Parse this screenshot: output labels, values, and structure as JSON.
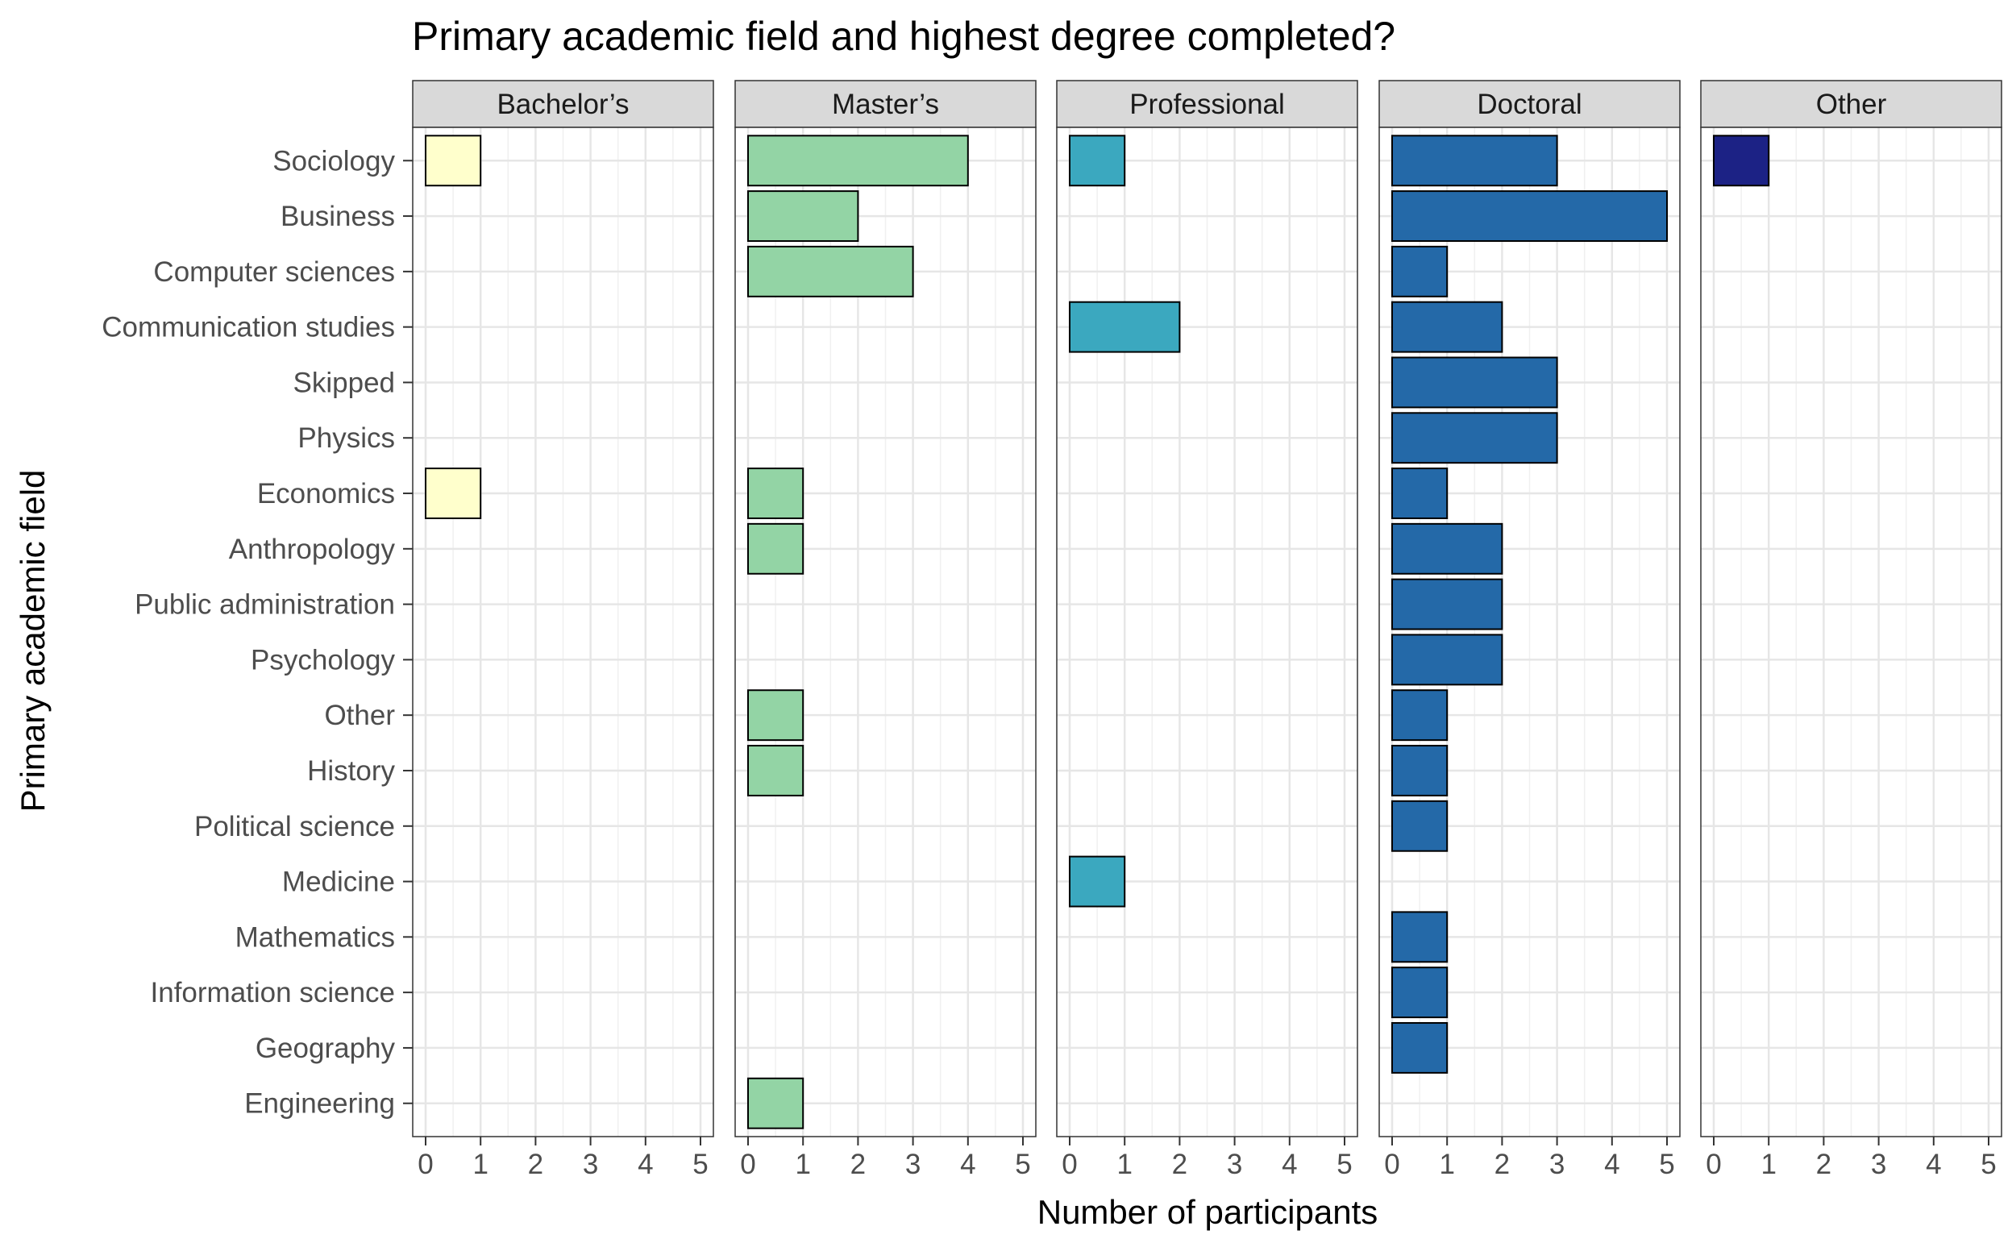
{
  "chart_data": {
    "type": "bar",
    "orientation": "horizontal",
    "title": "Primary academic field and highest degree completed?",
    "xlabel": "Number of participants",
    "ylabel": "Primary academic field",
    "xlim": [
      0,
      5
    ],
    "xticks": [
      "0",
      "1",
      "2",
      "3",
      "4",
      "5"
    ],
    "grid": true,
    "legend": "none",
    "categories": [
      "Sociology",
      "Business",
      "Computer sciences",
      "Communication studies",
      "Skipped",
      "Physics",
      "Economics",
      "Anthropology",
      "Public administration",
      "Psychology",
      "Other",
      "History",
      "Political science",
      "Medicine",
      "Mathematics",
      "Information science",
      "Geography",
      "Engineering"
    ],
    "panels": [
      {
        "name": "Bachelor’s",
        "color": "#ffffcc",
        "values": [
          1,
          0,
          0,
          0,
          0,
          0,
          1,
          0,
          0,
          0,
          0,
          0,
          0,
          0,
          0,
          0,
          0,
          0
        ]
      },
      {
        "name": "Master’s",
        "color": "#93d4a5",
        "values": [
          4,
          2,
          3,
          0,
          0,
          0,
          1,
          1,
          0,
          0,
          1,
          1,
          0,
          0,
          0,
          0,
          0,
          1
        ]
      },
      {
        "name": "Professional",
        "color": "#3ba8bf",
        "values": [
          1,
          0,
          0,
          2,
          0,
          0,
          0,
          0,
          0,
          0,
          0,
          0,
          0,
          1,
          0,
          0,
          0,
          0
        ]
      },
      {
        "name": "Doctoral",
        "color": "#2469a8",
        "values": [
          3,
          5,
          1,
          2,
          3,
          3,
          1,
          2,
          2,
          2,
          1,
          1,
          1,
          0,
          1,
          1,
          1,
          0
        ]
      },
      {
        "name": "Other",
        "color": "#1c2285",
        "values": [
          1,
          0,
          0,
          0,
          0,
          0,
          0,
          0,
          0,
          0,
          0,
          0,
          0,
          0,
          0,
          0,
          0,
          0
        ]
      }
    ]
  }
}
